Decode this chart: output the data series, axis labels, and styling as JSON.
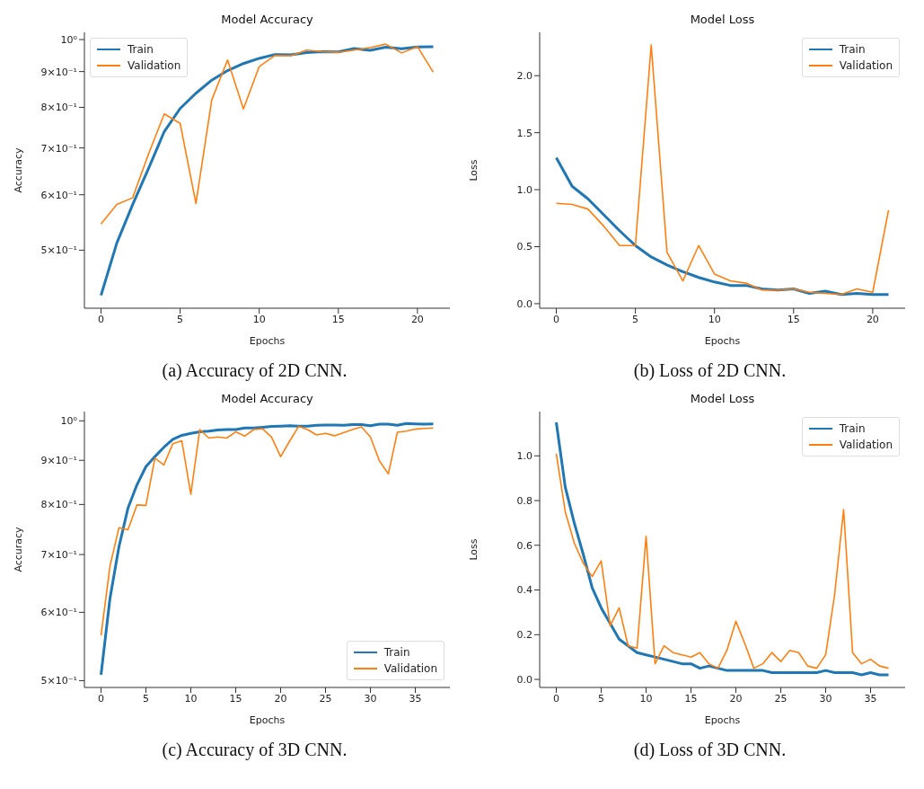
{
  "chart_data": [
    {
      "type": "line",
      "title": "Model Accuracy",
      "xlabel": "Epochs",
      "ylabel": "Accuracy",
      "log": true,
      "legend": "top left",
      "x": [
        0,
        1,
        2,
        3,
        4,
        5,
        6,
        7,
        8,
        9,
        10,
        11,
        12,
        13,
        14,
        15,
        16,
        17,
        18,
        19,
        20,
        21
      ],
      "xlim": [
        -1.05,
        22.05
      ],
      "xticks": [
        0,
        5,
        10,
        15,
        20
      ],
      "ylim": [
        0.413,
        1.024
      ],
      "yticks": [
        {
          "value": 0.5,
          "label": "5×10⁻¹"
        },
        {
          "value": 0.6,
          "label": "6×10⁻¹"
        },
        {
          "value": 0.7,
          "label": "7×10⁻¹"
        },
        {
          "value": 0.8,
          "label": "8×10⁻¹"
        },
        {
          "value": 0.9,
          "label": "9×10⁻¹"
        },
        {
          "value": 1,
          "label": "10⁰"
        }
      ],
      "series": [
        {
          "name": "Train",
          "color": "#1f77b4",
          "values": [
            0.431,
            0.512,
            0.581,
            0.654,
            0.739,
            0.797,
            0.838,
            0.875,
            0.903,
            0.924,
            0.94,
            0.952,
            0.951,
            0.958,
            0.961,
            0.96,
            0.971,
            0.965,
            0.975,
            0.97,
            0.976,
            0.977
          ]
        },
        {
          "name": "Validation",
          "color": "#ff7f0e",
          "values": [
            0.545,
            0.581,
            0.594,
            0.686,
            0.783,
            0.759,
            0.583,
            0.82,
            0.935,
            0.796,
            0.915,
            0.949,
            0.948,
            0.966,
            0.961,
            0.959,
            0.966,
            0.974,
            0.985,
            0.957,
            0.977,
            0.898
          ]
        }
      ],
      "annotations": [
        "(a) Accuracy of 2D CNN."
      ]
    },
    {
      "type": "line",
      "title": "Model Loss",
      "xlabel": "Epochs",
      "ylabel": "Loss",
      "legend": "top right",
      "x": [
        0,
        1,
        2,
        3,
        4,
        5,
        6,
        7,
        8,
        9,
        10,
        11,
        12,
        13,
        14,
        15,
        16,
        17,
        18,
        19,
        20,
        21
      ],
      "xlim": [
        -1.05,
        22.05
      ],
      "xticks": [
        0,
        5,
        10,
        15,
        20
      ],
      "ylim": [
        -0.04,
        2.38
      ],
      "yticks": [
        {
          "value": 0,
          "label": "0.0"
        },
        {
          "value": 0.5,
          "label": "0.5"
        },
        {
          "value": 1,
          "label": "1.0"
        },
        {
          "value": 1.5,
          "label": "1.5"
        },
        {
          "value": 2,
          "label": "2.0"
        }
      ],
      "series": [
        {
          "name": "Train",
          "color": "#1f77b4",
          "values": [
            1.28,
            1.03,
            0.92,
            0.78,
            0.64,
            0.51,
            0.41,
            0.34,
            0.28,
            0.23,
            0.19,
            0.16,
            0.16,
            0.13,
            0.12,
            0.13,
            0.09,
            0.11,
            0.08,
            0.09,
            0.08,
            0.08
          ]
        },
        {
          "name": "Validation",
          "color": "#ff7f0e",
          "values": [
            0.88,
            0.87,
            0.83,
            0.68,
            0.51,
            0.51,
            2.27,
            0.45,
            0.2,
            0.51,
            0.26,
            0.2,
            0.18,
            0.12,
            0.12,
            0.13,
            0.1,
            0.09,
            0.08,
            0.13,
            0.1,
            0.82
          ]
        }
      ],
      "annotations": [
        "(b) Loss of 2D CNN."
      ]
    },
    {
      "type": "line",
      "title": "Model Accuracy",
      "xlabel": "Epochs",
      "ylabel": "Accuracy",
      "log": true,
      "legend": "bottom right",
      "x": [
        0,
        1,
        2,
        3,
        4,
        5,
        6,
        7,
        8,
        9,
        10,
        11,
        12,
        13,
        14,
        15,
        16,
        17,
        18,
        19,
        20,
        21,
        22,
        23,
        24,
        25,
        26,
        27,
        28,
        29,
        30,
        31,
        32,
        33,
        34,
        35,
        36,
        37
      ],
      "xlim": [
        -1.85,
        38.85
      ],
      "xticks": [
        0,
        5,
        10,
        15,
        20,
        25,
        30,
        35
      ],
      "ylim": [
        0.491,
        1.025
      ],
      "yticks": [
        {
          "value": 0.5,
          "label": "5×10⁻¹"
        },
        {
          "value": 0.6,
          "label": "6×10⁻¹"
        },
        {
          "value": 0.7,
          "label": "7×10⁻¹"
        },
        {
          "value": 0.8,
          "label": "8×10⁻¹"
        },
        {
          "value": 0.9,
          "label": "9×10⁻¹"
        },
        {
          "value": 1,
          "label": "10⁰"
        }
      ],
      "series": [
        {
          "name": "Train",
          "color": "#1f77b4",
          "values": [
            0.508,
            0.623,
            0.715,
            0.792,
            0.843,
            0.885,
            0.909,
            0.932,
            0.952,
            0.962,
            0.967,
            0.971,
            0.973,
            0.976,
            0.977,
            0.977,
            0.981,
            0.981,
            0.983,
            0.985,
            0.986,
            0.987,
            0.986,
            0.986,
            0.988,
            0.989,
            0.989,
            0.988,
            0.99,
            0.99,
            0.987,
            0.991,
            0.991,
            0.988,
            0.993,
            0.992,
            0.991,
            0.992
          ]
        },
        {
          "name": "Validation",
          "color": "#ff7f0e",
          "values": [
            0.564,
            0.679,
            0.752,
            0.748,
            0.799,
            0.798,
            0.905,
            0.889,
            0.941,
            0.948,
            0.822,
            0.977,
            0.955,
            0.958,
            0.955,
            0.971,
            0.96,
            0.977,
            0.979,
            0.957,
            0.909,
            0.947,
            0.985,
            0.977,
            0.963,
            0.967,
            0.961,
            0.969,
            0.977,
            0.984,
            0.958,
            0.899,
            0.868,
            0.97,
            0.973,
            0.978,
            0.98,
            0.981
          ]
        }
      ],
      "annotations": [
        "(c) Accuracy of 3D CNN."
      ]
    },
    {
      "type": "line",
      "title": "Model Loss",
      "xlabel": "Epochs",
      "ylabel": "Loss",
      "legend": "top right",
      "x": [
        0,
        1,
        2,
        3,
        4,
        5,
        6,
        7,
        8,
        9,
        10,
        11,
        12,
        13,
        14,
        15,
        16,
        17,
        18,
        19,
        20,
        21,
        22,
        23,
        24,
        25,
        26,
        27,
        28,
        29,
        30,
        31,
        32,
        33,
        34,
        35,
        36,
        37
      ],
      "xlim": [
        -1.85,
        38.85
      ],
      "xticks": [
        0,
        5,
        10,
        15,
        20,
        25,
        30,
        35
      ],
      "ylim": [
        -0.036,
        1.198
      ],
      "yticks": [
        {
          "value": 0,
          "label": "0.0"
        },
        {
          "value": 0.2,
          "label": "0.2"
        },
        {
          "value": 0.4,
          "label": "0.4"
        },
        {
          "value": 0.6,
          "label": "0.6"
        },
        {
          "value": 0.8,
          "label": "0.8"
        },
        {
          "value": 1,
          "label": "1.0"
        }
      ],
      "series": [
        {
          "name": "Train",
          "color": "#1f77b4",
          "values": [
            1.15,
            0.86,
            0.7,
            0.56,
            0.41,
            0.32,
            0.25,
            0.18,
            0.15,
            0.12,
            0.11,
            0.1,
            0.09,
            0.08,
            0.07,
            0.07,
            0.05,
            0.06,
            0.05,
            0.04,
            0.04,
            0.04,
            0.04,
            0.04,
            0.03,
            0.03,
            0.03,
            0.03,
            0.03,
            0.03,
            0.04,
            0.03,
            0.03,
            0.03,
            0.02,
            0.03,
            0.02,
            0.02
          ]
        },
        {
          "name": "Validation",
          "color": "#ff7f0e",
          "values": [
            1.01,
            0.75,
            0.61,
            0.52,
            0.46,
            0.53,
            0.24,
            0.32,
            0.15,
            0.14,
            0.64,
            0.07,
            0.15,
            0.12,
            0.11,
            0.1,
            0.12,
            0.07,
            0.05,
            0.13,
            0.26,
            0.16,
            0.05,
            0.07,
            0.12,
            0.08,
            0.13,
            0.12,
            0.06,
            0.05,
            0.11,
            0.38,
            0.76,
            0.12,
            0.07,
            0.09,
            0.06,
            0.05
          ]
        }
      ],
      "annotations": [
        "(d) Loss of 3D CNN."
      ]
    }
  ]
}
